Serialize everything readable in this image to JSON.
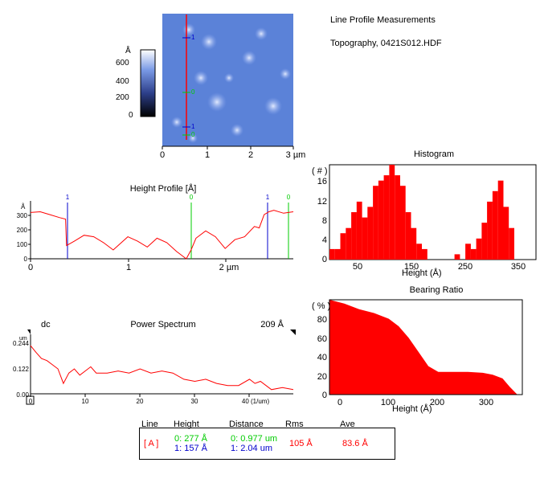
{
  "header": {
    "title": "Line Profile Measurements",
    "file": "Topography,  0421S012.HDF"
  },
  "colors": {
    "profile": "#ff0000",
    "marker0": "#00cc00",
    "marker1": "#0000cc",
    "image_bg": "#5a80d6"
  },
  "image": {
    "scale_unit": "Å",
    "scale_ticks": [
      "600",
      "400",
      "200",
      "0"
    ],
    "x_ticks": [
      "0",
      "1",
      "2",
      "3 µm"
    ],
    "marker_labels": [
      "1",
      "0",
      "1",
      "0"
    ]
  },
  "height_profile": {
    "title": "Height Profile [Å]",
    "y_unit": "Å",
    "y_ticks": [
      "300",
      "200",
      "100",
      "0"
    ],
    "x_ticks": [
      "0",
      "1",
      "2 µm"
    ],
    "marker_labels": [
      "1",
      "0",
      "1",
      "0"
    ]
  },
  "power_spectrum": {
    "title": "Power Spectrum",
    "left_label": "dc",
    "right_label": "209 Å",
    "y_unit": "um",
    "y_ticks": [
      "0.244",
      "0.122",
      "0.00"
    ],
    "x_ticks": [
      "0",
      "10",
      "20",
      "30",
      "40 (1/um)"
    ]
  },
  "histogram": {
    "title": "Histogram",
    "y_label": "( # )",
    "y_ticks": [
      "16",
      "12",
      "8",
      "4",
      "0"
    ],
    "x_ticks": [
      "50",
      "150",
      "250",
      "350"
    ],
    "x_label": "Height (Å)"
  },
  "bearing": {
    "title": "Bearing Ratio",
    "y_label": "( % )",
    "y_ticks": [
      "80",
      "60",
      "40",
      "20",
      "0"
    ],
    "x_ticks": [
      "0",
      "100",
      "200",
      "300"
    ],
    "x_label": "Height (Å)"
  },
  "stats": {
    "col_line": "Line",
    "col_height": "Height",
    "col_distance": "Distance",
    "col_rms": "Rms",
    "col_ave": "Ave",
    "row_label": "[ A ]",
    "h0": "0:  277 Å",
    "h1": "1:  157 Å",
    "d0": "0:  0.977 um",
    "d1": "1:  2.04 um",
    "rms": "105 Å",
    "ave": "83.6 Å"
  },
  "chart_data": [
    {
      "type": "line",
      "title": "Height Profile [Å]",
      "ylabel": "Å",
      "xlabel": "µm",
      "xlim": [
        0,
        2.7
      ],
      "ylim": [
        0,
        350
      ],
      "x": [
        0,
        0.1,
        0.2,
        0.3,
        0.36,
        0.37,
        0.45,
        0.55,
        0.65,
        0.75,
        0.85,
        0.9,
        1.0,
        1.1,
        1.2,
        1.3,
        1.4,
        1.5,
        1.6,
        1.65,
        1.7,
        1.8,
        1.9,
        2.0,
        2.1,
        2.2,
        2.3,
        2.35,
        2.4,
        2.45,
        2.5,
        2.6,
        2.7
      ],
      "series": [
        {
          "values": [
            315,
            320,
            300,
            280,
            270,
            90,
            120,
            160,
            150,
            110,
            60,
            90,
            150,
            120,
            80,
            140,
            110,
            50,
            0,
            60,
            140,
            190,
            150,
            70,
            130,
            150,
            220,
            210,
            300,
            320,
            330,
            310,
            320
          ]
        }
      ]
    },
    {
      "type": "line",
      "title": "Power Spectrum",
      "ylabel": "um",
      "xlabel": "(1/um)",
      "xlim": [
        0,
        48
      ],
      "ylim": [
        0,
        0.244
      ],
      "x": [
        0,
        1,
        2,
        3,
        4,
        5,
        6,
        7,
        8,
        9,
        10,
        11,
        12,
        14,
        16,
        18,
        20,
        22,
        24,
        26,
        28,
        30,
        32,
        34,
        36,
        38,
        40,
        41,
        42,
        44,
        46,
        48
      ],
      "series": [
        {
          "values": [
            0.232,
            0.2,
            0.17,
            0.16,
            0.14,
            0.12,
            0.05,
            0.1,
            0.12,
            0.09,
            0.11,
            0.13,
            0.1,
            0.1,
            0.11,
            0.1,
            0.12,
            0.1,
            0.11,
            0.1,
            0.07,
            0.06,
            0.07,
            0.05,
            0.04,
            0.04,
            0.07,
            0.05,
            0.06,
            0.02,
            0.03,
            0.02
          ]
        }
      ]
    },
    {
      "type": "bar",
      "title": "Histogram",
      "ylabel": "( # )",
      "xlabel": "Height (Å)",
      "xlim": [
        0,
        380
      ],
      "ylim": [
        0,
        18
      ],
      "x": [
        5,
        15,
        25,
        35,
        45,
        55,
        65,
        75,
        85,
        95,
        105,
        115,
        125,
        135,
        145,
        155,
        165,
        175,
        185,
        235,
        255,
        265,
        275,
        285,
        295,
        305,
        315,
        325,
        335
      ],
      "series": [
        {
          "values": [
            2,
            2,
            5,
            6,
            9,
            11,
            8,
            10,
            14,
            15,
            16,
            18,
            16,
            14,
            9,
            6,
            3,
            2,
            0,
            1,
            3,
            2,
            4,
            7,
            11,
            13,
            15,
            10,
            6
          ]
        }
      ]
    },
    {
      "type": "area",
      "title": "Bearing Ratio",
      "ylabel": "( % )",
      "xlabel": "Height (Å)",
      "xlim": [
        -10,
        380
      ],
      "ylim": [
        0,
        100
      ],
      "x": [
        -10,
        20,
        50,
        80,
        110,
        130,
        150,
        170,
        190,
        210,
        240,
        270,
        300,
        320,
        340,
        355,
        370
      ],
      "series": [
        {
          "values": [
            100,
            96,
            90,
            86,
            80,
            72,
            60,
            45,
            30,
            24,
            24,
            24,
            23,
            21,
            17,
            8,
            0
          ]
        }
      ]
    }
  ]
}
